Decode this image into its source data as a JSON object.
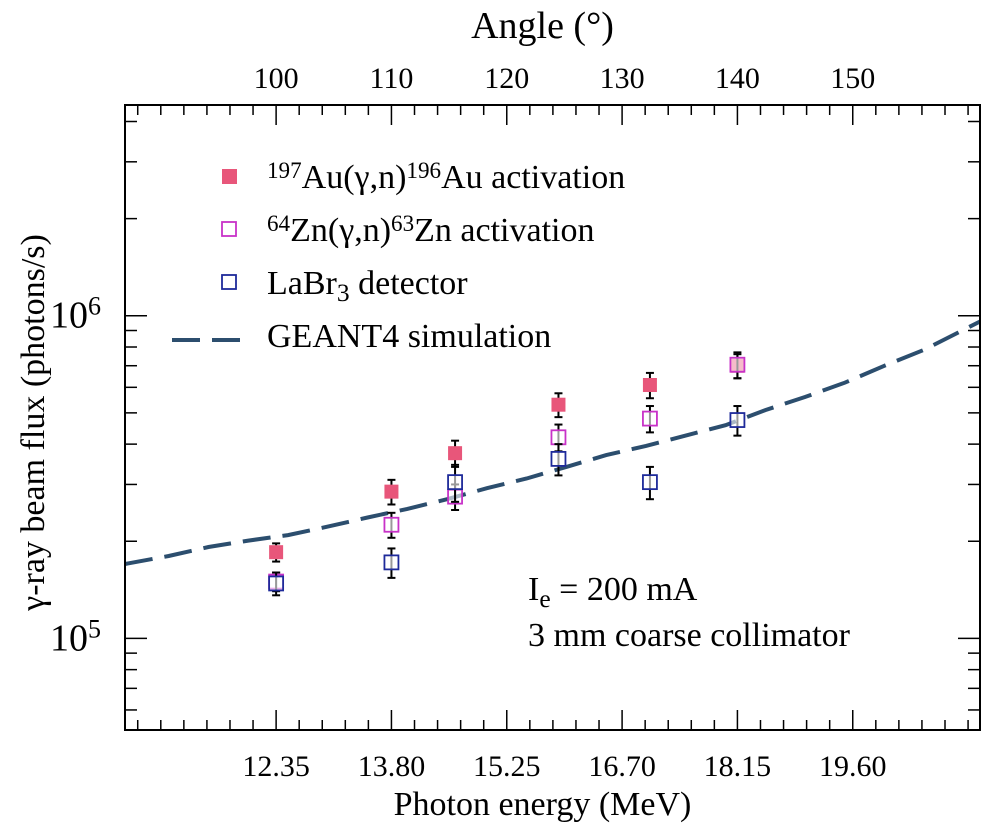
{
  "chart_data": {
    "type": "scatter",
    "title": "",
    "xlabel": "Photon energy (MeV)",
    "ylabel": "γ-ray beam flux (photons/s)",
    "x2label": "Angle (°)",
    "xlim": [
      10.45,
      21.2
    ],
    "ylim": [
      52000,
      4500000
    ],
    "yscale": "log",
    "grid": false,
    "legend_position": "top-left",
    "x_ticks": [
      12.35,
      13.8,
      15.25,
      16.7,
      18.15,
      19.6
    ],
    "x_tick_labels": [
      "12.35",
      "13.80",
      "15.25",
      "16.70",
      "18.15",
      "19.60"
    ],
    "top_ticks": [
      {
        "label": "100",
        "x": 12.35
      },
      {
        "label": "110",
        "x": 13.8
      },
      {
        "label": "120",
        "x": 15.25
      },
      {
        "label": "130",
        "x": 16.7
      },
      {
        "label": "140",
        "x": 18.15
      },
      {
        "label": "150",
        "x": 19.6
      }
    ],
    "y_major_ticks": [
      {
        "value": 100000,
        "base": "10",
        "exp": "5"
      },
      {
        "value": 1000000,
        "base": "10",
        "exp": "6"
      }
    ],
    "series": [
      {
        "label_parts": [
          {
            "t": "197",
            "sup": true
          },
          {
            "t": "Au(γ,n)"
          },
          {
            "t": "196",
            "sup": true
          },
          {
            "t": "Au  activation"
          }
        ],
        "marker": "filled-square",
        "color": "#e8567a",
        "points": [
          {
            "x": 12.35,
            "y": 185000,
            "err": 12000
          },
          {
            "x": 13.8,
            "y": 285000,
            "err": 25000
          },
          {
            "x": 14.6,
            "y": 375000,
            "err": 35000
          },
          {
            "x": 15.9,
            "y": 530000,
            "err": 45000
          },
          {
            "x": 17.05,
            "y": 610000,
            "err": 55000
          },
          {
            "x": 18.15,
            "y": 700000,
            "err": 60000
          }
        ]
      },
      {
        "label_parts": [
          {
            "t": "64",
            "sup": true
          },
          {
            "t": "Zn(γ,n)"
          },
          {
            "t": "63",
            "sup": true
          },
          {
            "t": "Zn  activation"
          }
        ],
        "marker": "open-square",
        "color": "#c832c8",
        "points": [
          {
            "x": 12.35,
            "y": 150000,
            "err": 10000
          },
          {
            "x": 13.8,
            "y": 225000,
            "err": 20000
          },
          {
            "x": 14.6,
            "y": 275000,
            "err": 25000
          },
          {
            "x": 15.9,
            "y": 420000,
            "err": 40000
          },
          {
            "x": 17.05,
            "y": 480000,
            "err": 45000
          },
          {
            "x": 18.15,
            "y": 705000,
            "err": 65000
          }
        ]
      },
      {
        "label_parts": [
          {
            "t": "LaBr"
          },
          {
            "t": "3",
            "sub": true
          },
          {
            "t": "  detector"
          }
        ],
        "marker": "open-square",
        "color": "#1e2a9a",
        "points": [
          {
            "x": 12.35,
            "y": 148000,
            "err": 12000
          },
          {
            "x": 13.8,
            "y": 172000,
            "err": 18000
          },
          {
            "x": 14.6,
            "y": 305000,
            "err": 40000
          },
          {
            "x": 15.9,
            "y": 360000,
            "err": 40000
          },
          {
            "x": 17.05,
            "y": 305000,
            "err": 35000
          },
          {
            "x": 18.15,
            "y": 475000,
            "err": 50000
          }
        ]
      },
      {
        "label_parts": [
          {
            "t": "GEANT4 simulation"
          }
        ],
        "marker": "dashed-line",
        "color": "#2c4e6e",
        "points": [
          {
            "x": 10.45,
            "y": 170000
          },
          {
            "x": 11.0,
            "y": 180000
          },
          {
            "x": 11.5,
            "y": 192000
          },
          {
            "x": 12.0,
            "y": 201000
          },
          {
            "x": 12.5,
            "y": 209000
          },
          {
            "x": 13.0,
            "y": 222000
          },
          {
            "x": 13.5,
            "y": 237000
          },
          {
            "x": 14.0,
            "y": 252000
          },
          {
            "x": 14.5,
            "y": 270000
          },
          {
            "x": 15.0,
            "y": 292000
          },
          {
            "x": 15.5,
            "y": 313000
          },
          {
            "x": 16.0,
            "y": 340000
          },
          {
            "x": 16.5,
            "y": 370000
          },
          {
            "x": 17.0,
            "y": 395000
          },
          {
            "x": 17.5,
            "y": 425000
          },
          {
            "x": 18.0,
            "y": 458000
          },
          {
            "x": 18.5,
            "y": 510000
          },
          {
            "x": 19.0,
            "y": 560000
          },
          {
            "x": 19.5,
            "y": 620000
          },
          {
            "x": 20.0,
            "y": 700000
          },
          {
            "x": 20.5,
            "y": 785000
          },
          {
            "x": 21.2,
            "y": 960000
          }
        ]
      }
    ],
    "annotations": [
      {
        "parts": [
          {
            "t": "I"
          },
          {
            "t": "e",
            "sub": true
          },
          {
            "t": " = 200 mA"
          }
        ]
      },
      {
        "parts": [
          {
            "t": "3 mm coarse collimator"
          }
        ]
      }
    ]
  }
}
